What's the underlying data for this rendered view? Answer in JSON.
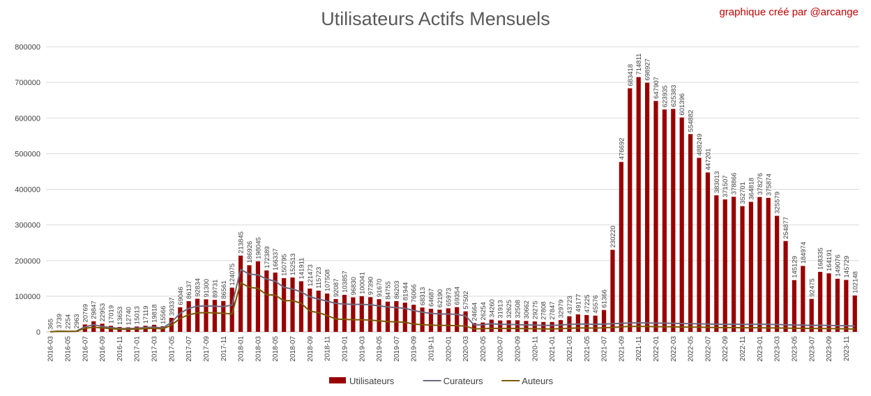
{
  "credit": "graphique créé par  @arcange",
  "colors": {
    "utilisateurs": "#990000",
    "curateurs": "#6b6b80",
    "auteurs": "#7a5a00",
    "grid": "#d9d9d9"
  },
  "chart_data": {
    "type": "bar",
    "title": "Utilisateurs Actifs Mensuels",
    "ylim": [
      0,
      800000
    ],
    "yticks": [
      0,
      100000,
      200000,
      300000,
      400000,
      500000,
      600000,
      700000,
      800000
    ],
    "grid": true,
    "legend_position": "bottom",
    "categories": [
      "2016-03",
      "2016-04",
      "2016-05",
      "2016-06",
      "2016-07",
      "2016-08",
      "2016-09",
      "2016-10",
      "2016-11",
      "2016-12",
      "2017-01",
      "2017-02",
      "2017-03",
      "2017-04",
      "2017-05",
      "2017-06",
      "2017-07",
      "2017-08",
      "2017-09",
      "2017-10",
      "2017-11",
      "2017-12",
      "2018-01",
      "2018-02",
      "2018-03",
      "2018-04",
      "2018-05",
      "2018-06",
      "2018-07",
      "2018-08",
      "2018-09",
      "2018-10",
      "2018-11",
      "2018-12",
      "2019-01",
      "2019-02",
      "2019-03",
      "2019-04",
      "2019-05",
      "2019-06",
      "2019-07",
      "2019-08",
      "2019-09",
      "2019-10",
      "2019-11",
      "2019-12",
      "2020-01",
      "2020-02",
      "2020-03",
      "2020-04",
      "2020-05",
      "2020-06",
      "2020-07",
      "2020-08",
      "2020-09",
      "2020-10",
      "2020-11",
      "2020-12",
      "2021-01",
      "2021-02",
      "2021-03",
      "2021-04",
      "2021-05",
      "2021-06",
      "2021-07",
      "2021-08",
      "2021-09",
      "2021-10",
      "2021-11",
      "2021-12",
      "2022-01",
      "2022-02",
      "2022-03",
      "2022-04",
      "2022-05",
      "2022-06",
      "2022-07",
      "2022-08",
      "2022-09",
      "2022-10",
      "2022-11",
      "2022-12",
      "2023-01",
      "2023-02",
      "2023-03",
      "2023-04",
      "2023-05",
      "2023-06",
      "2023-07",
      "2023-08",
      "2023-09",
      "2023-10",
      "2023-11",
      "2023-12"
    ],
    "series": [
      {
        "name": "Utilisateurs",
        "type": "bar",
        "values": [
          365,
          3739,
          2254,
          2963,
          20769,
          29847,
          22953,
          17019,
          13653,
          12740,
          15013,
          17119,
          19818,
          15566,
          39337,
          69046,
          86137,
          92834,
          91300,
          89731,
          86561,
          124075,
          213845,
          186926,
          198045,
          172389,
          166337,
          150795,
          152513,
          141911,
          121473,
          115723,
          107508,
          92087,
          103857,
          96830,
          100041,
          97390,
          91670,
          84755,
          86203,
          81944,
          76066,
          68313,
          64687,
          62190,
          65973,
          69354,
          57502,
          24664,
          26254,
          34260,
          31913,
          32625,
          32508,
          30662,
          29275,
          27808,
          27847,
          32979,
          43723,
          49177,
          47225,
          45576,
          61366,
          230220,
          476692,
          683418,
          714811,
          698927,
          647907,
          623935,
          625383,
          601396,
          554882,
          488249,
          447201,
          383013,
          371507,
          378866,
          352701,
          364818,
          378276,
          375874,
          325579,
          254877,
          145129,
          184974,
          92475,
          168335,
          164191,
          149076,
          145729,
          102148
        ]
      },
      {
        "name": "Curateurs",
        "type": "line",
        "values": [
          300,
          2000,
          1500,
          2000,
          14000,
          20000,
          15000,
          12000,
          9500,
          9000,
          10500,
          12000,
          13500,
          11000,
          27000,
          52000,
          66000,
          72000,
          73000,
          72000,
          71000,
          75000,
          175000,
          162000,
          160000,
          148000,
          142000,
          125000,
          120000,
          112000,
          98000,
          92000,
          86000,
          80000,
          78000,
          77000,
          77000,
          76000,
          73000,
          70000,
          68000,
          66000,
          60000,
          55000,
          52000,
          50000,
          50000,
          49000,
          45000,
          19000,
          20000,
          23000,
          21000,
          21000,
          20000,
          19500,
          19000,
          18000,
          18000,
          19000,
          21000,
          22000,
          21500,
          21000,
          22000,
          23000,
          24000,
          25000,
          25500,
          25000,
          24500,
          24500,
          24000,
          23500,
          23000,
          22500,
          22000,
          21500,
          21000,
          21500,
          21000,
          21000,
          21500,
          21000,
          20500,
          20000,
          19000,
          19000,
          18000,
          18500,
          18000,
          17500,
          17000,
          16500
        ]
      },
      {
        "name": "Auteurs",
        "type": "line",
        "values": [
          200,
          1500,
          1200,
          1500,
          10000,
          13000,
          11000,
          9000,
          7500,
          7000,
          8000,
          9000,
          10000,
          8500,
          19000,
          38000,
          48000,
          53000,
          54000,
          53000,
          52000,
          50000,
          138000,
          125000,
          122000,
          104000,
          103000,
          87000,
          88000,
          80000,
          58000,
          54000,
          46000,
          36000,
          35000,
          34000,
          34000,
          33000,
          31000,
          29000,
          28000,
          27000,
          22000,
          20000,
          19000,
          18000,
          18000,
          17500,
          16000,
          8500,
          9000,
          10000,
          9500,
          9500,
          9500,
          9000,
          9000,
          8500,
          8500,
          9000,
          10000,
          11000,
          11000,
          10500,
          11500,
          12500,
          14000,
          15000,
          15500,
          15000,
          14500,
          14500,
          14000,
          13500,
          13500,
          13000,
          12500,
          12000,
          12000,
          12000,
          11500,
          11500,
          11500,
          11000,
          11000,
          10500,
          10000,
          10000,
          9500,
          9500,
          9000,
          9000,
          8500,
          8000
        ]
      }
    ]
  }
}
